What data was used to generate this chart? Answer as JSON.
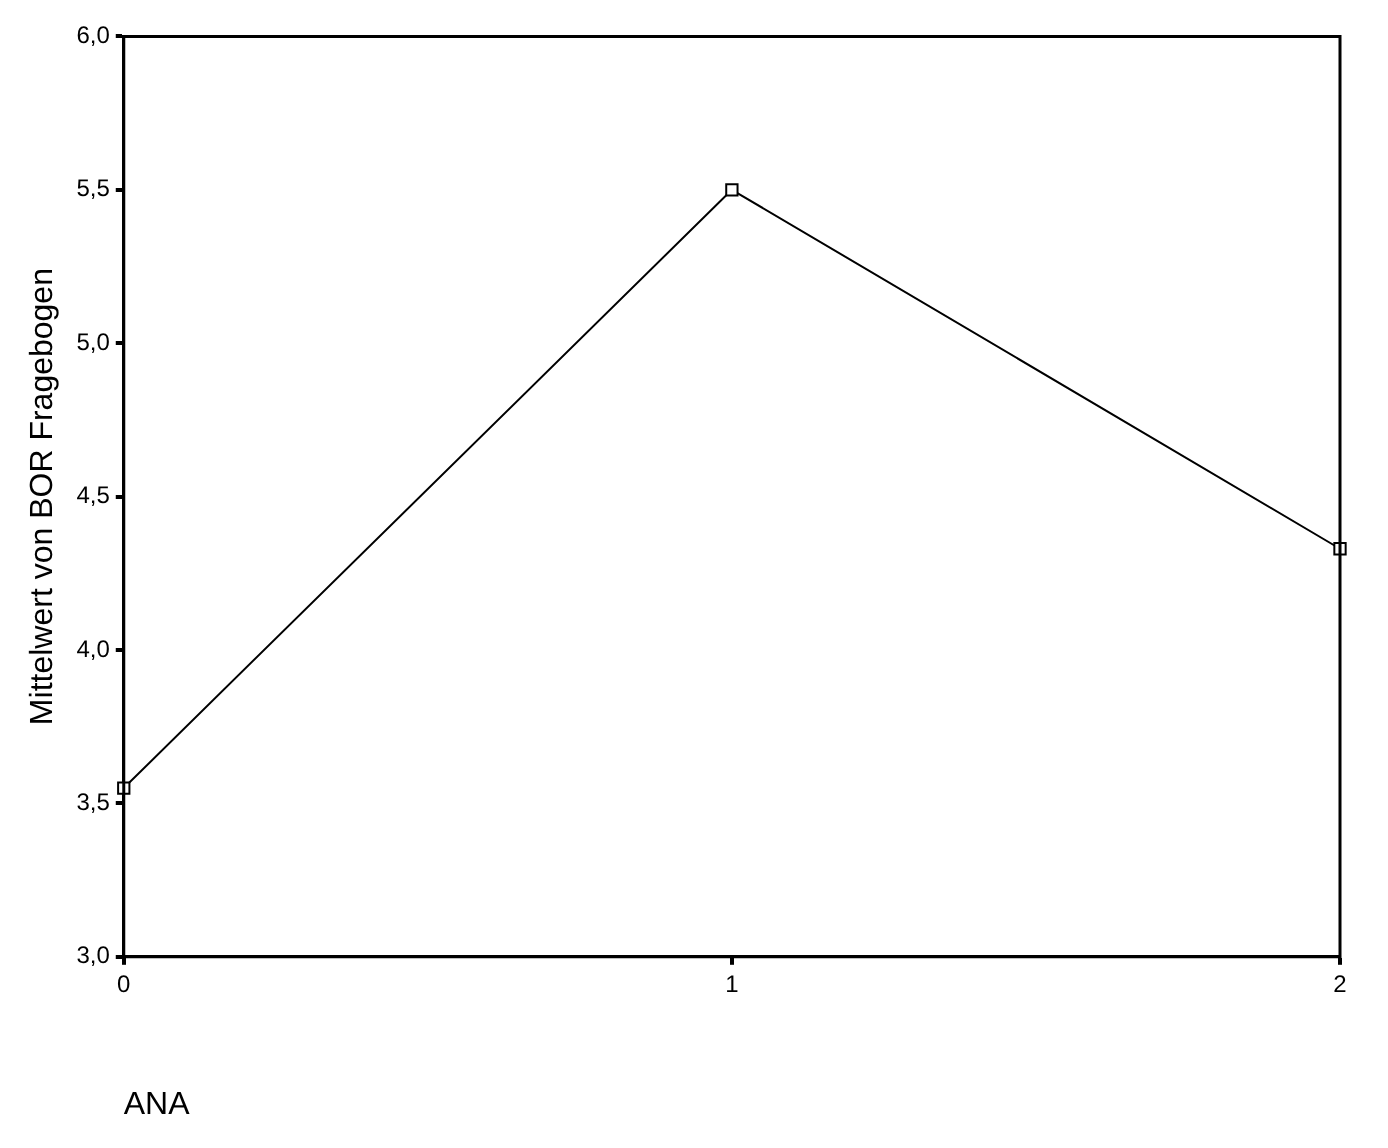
{
  "chart_data": {
    "type": "line",
    "xlabel": "ANA",
    "ylabel": "Mittelwert von BOR Fragebogen",
    "x": [
      0,
      1,
      2
    ],
    "series": [
      {
        "color": "#000000",
        "values": [
          3.55,
          5.5,
          4.33
        ]
      }
    ],
    "xlim": [
      0,
      2
    ],
    "xticks": [
      0,
      1,
      2
    ],
    "ylim": [
      3,
      6
    ],
    "yticks": [
      {
        "value": 3,
        "label": "3,0"
      },
      {
        "value": 3.5,
        "label": "3,5"
      },
      {
        "value": 4,
        "label": "4,0"
      },
      {
        "value": 4.5,
        "label": "4,5"
      },
      {
        "value": 5,
        "label": "5,0"
      },
      {
        "value": 5.5,
        "label": "5,5"
      },
      {
        "value": 6,
        "label": "6,0"
      }
    ],
    "grid": false,
    "legend": false,
    "marker": "square",
    "line_style": "solid"
  }
}
